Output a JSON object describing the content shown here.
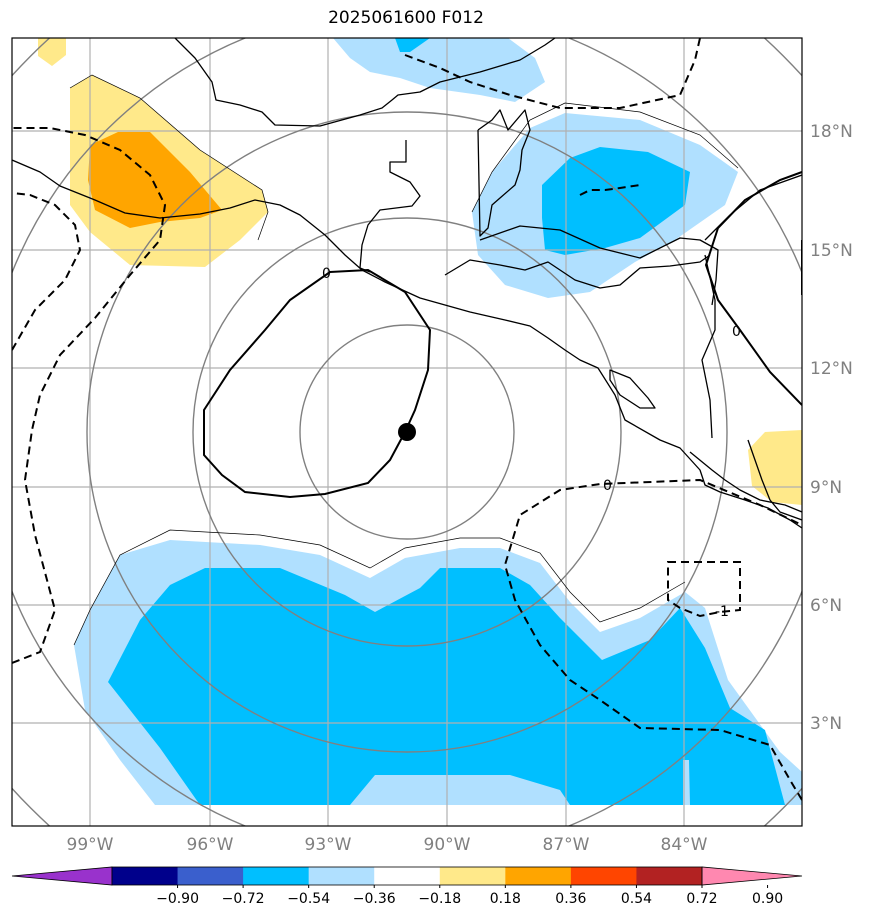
{
  "chart_data": {
    "type": "contour_map",
    "title": "2025061600 F012",
    "lat_ticks": [
      "3°N",
      "6°N",
      "9°N",
      "12°N",
      "15°N",
      "18°N"
    ],
    "lon_ticks": [
      "99°W",
      "96°W",
      "93°W",
      "90°W",
      "87°W",
      "84°W"
    ],
    "extent": {
      "lon": [
        -101,
        -81
      ],
      "lat": [
        1,
        20
      ]
    },
    "center_marker": {
      "lon": -91.0,
      "lat": 10.4
    },
    "contour_labels": [
      "0",
      "0",
      "0",
      "-1"
    ],
    "colorbar": {
      "levels": [
        "−0.90",
        "−0.72",
        "−0.54",
        "−0.36",
        "−0.18",
        "0.18",
        "0.36",
        "0.54",
        "0.72",
        "0.90"
      ],
      "colors": [
        "#9932cc",
        "#00008b",
        "#3a5fcd",
        "#00bfff",
        "#b0e0ff",
        "#ffffff",
        "#ffe98a",
        "#ffa500",
        "#ff4500",
        "#b22222",
        "#ff88b0"
      ],
      "extend": "both"
    }
  }
}
